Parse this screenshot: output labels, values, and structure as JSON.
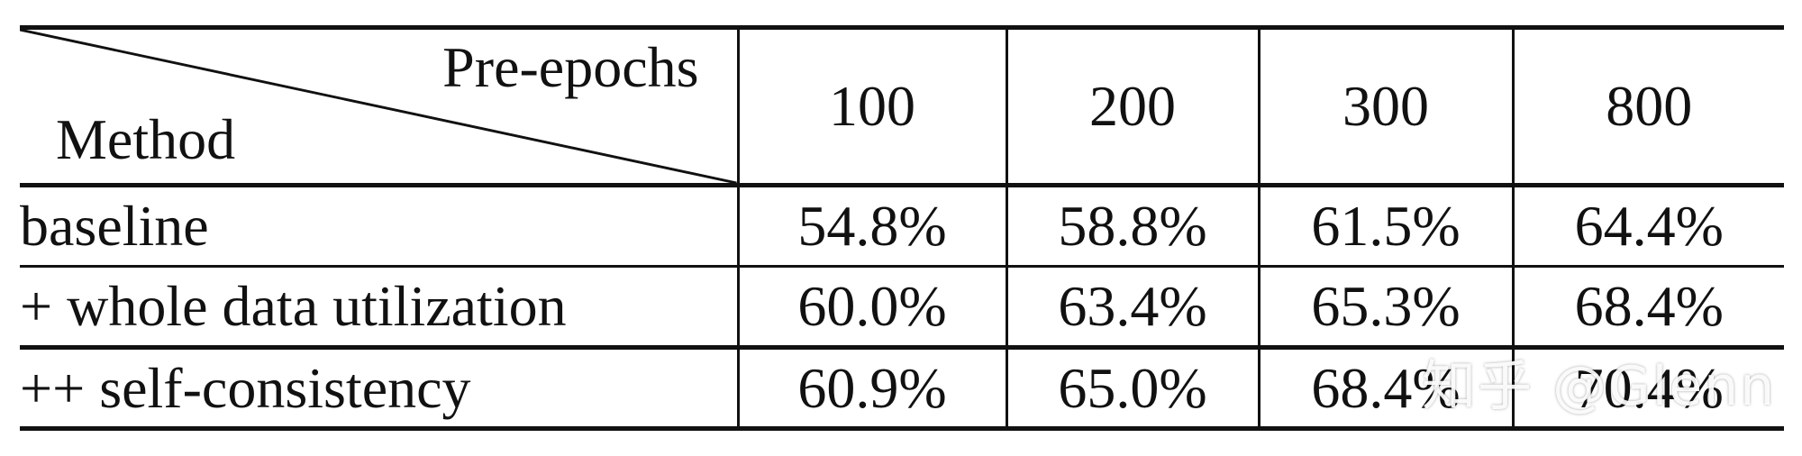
{
  "table": {
    "corner_top": "Pre-epochs",
    "corner_bottom": "Method",
    "columns": [
      "100",
      "200",
      "300",
      "800"
    ],
    "rows": [
      {
        "method": "baseline",
        "values": [
          "54.8%",
          "58.8%",
          "61.5%",
          "64.4%"
        ]
      },
      {
        "method": "+ whole data utilization",
        "values": [
          "60.0%",
          "63.4%",
          "65.3%",
          "68.4%"
        ]
      },
      {
        "method": "++ self-consistency",
        "values": [
          "60.9%",
          "65.0%",
          "68.4%",
          "70.4%"
        ]
      }
    ]
  },
  "watermark": "知乎 @Glenn"
}
